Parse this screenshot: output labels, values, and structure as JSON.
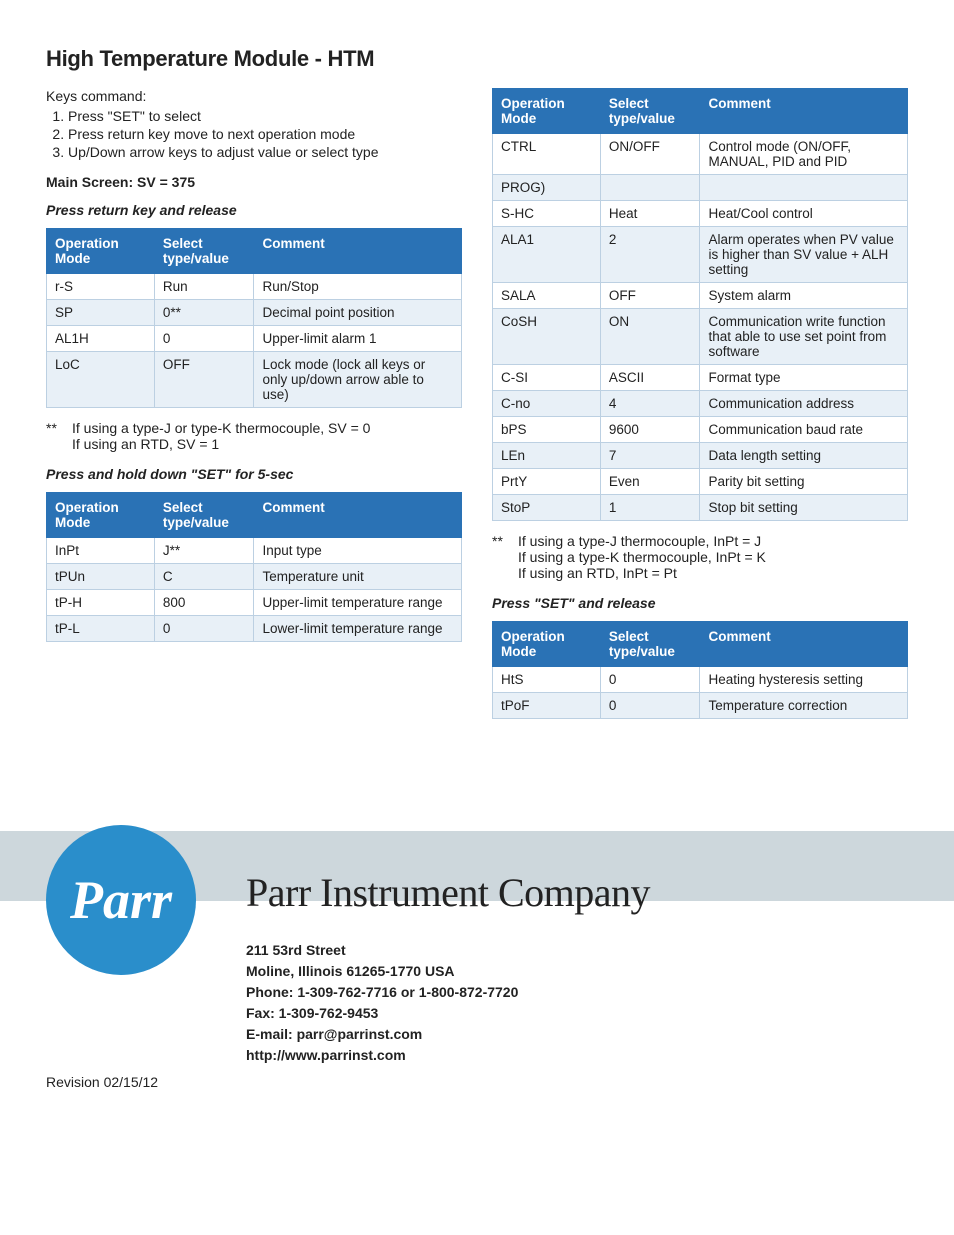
{
  "title": "High Temperature Module - HTM",
  "intro_label": "Keys command:",
  "keys": [
    "Press \"SET\" to select",
    "Press return key move to next operation mode",
    "Up/Down arrow keys to adjust value or select type"
  ],
  "main_screen": "Main Screen: SV = 375",
  "press_return": "Press return key and release",
  "headers": {
    "op": "Operation Mode",
    "sel": "Select type/value",
    "com": "Comment"
  },
  "table1": [
    {
      "op": "r-S",
      "sel": "Run",
      "com": "Run/Stop"
    },
    {
      "op": "SP",
      "sel": "0**",
      "com": "Decimal point position"
    },
    {
      "op": "AL1H",
      "sel": "0",
      "com": "Upper-limit alarm 1"
    },
    {
      "op": "LoC",
      "sel": "OFF",
      "com": "Lock mode (lock all keys or only up/down arrow able to use)"
    }
  ],
  "note1_top": "If using a type-J or type-K thermocouple, SV = 0",
  "note1_bot": "If using an RTD, SV = 1",
  "press_hold": "Press and hold down \"SET\" for 5-sec",
  "table2": [
    {
      "op": "InPt",
      "sel": "J**",
      "com": "Input type"
    },
    {
      "op": "tPUn",
      "sel": "C",
      "com": "Temperature unit"
    },
    {
      "op": "tP-H",
      "sel": "800",
      "com": "Upper-limit temperature range"
    },
    {
      "op": "tP-L",
      "sel": "0",
      "com": "Lower-limit temperature range"
    }
  ],
  "table3": [
    {
      "op": "CTRL",
      "sel": "ON/OFF",
      "com": "Control mode (ON/OFF, MANUAL, PID and PID"
    },
    {
      "op": "PROG)",
      "sel": "",
      "com": ""
    },
    {
      "op": "S-HC",
      "sel": "Heat",
      "com": "Heat/Cool control"
    },
    {
      "op": "ALA1",
      "sel": "2",
      "com": "Alarm operates when PV value is higher than SV value + ALH setting"
    },
    {
      "op": "SALA",
      "sel": "OFF",
      "com": "System alarm"
    },
    {
      "op": "CoSH",
      "sel": "ON",
      "com": "Communication write function that able to use set point from software"
    },
    {
      "op": "C-SI",
      "sel": "ASCII",
      "com": "Format type"
    },
    {
      "op": "C-no",
      "sel": "4",
      "com": "Communication address"
    },
    {
      "op": "bPS",
      "sel": "9600",
      "com": "Communication baud rate"
    },
    {
      "op": "LEn",
      "sel": "7",
      "com": "Data length setting"
    },
    {
      "op": "PrtY",
      "sel": "Even",
      "com": "Parity bit setting"
    },
    {
      "op": "StoP",
      "sel": "1",
      "com": "Stop bit setting"
    }
  ],
  "note2_a": "If using a type-J thermocouple, InPt = J",
  "note2_b": "If using a type-K thermocouple, InPt = K",
  "note2_c": "If using an RTD, InPt = Pt",
  "press_set": "Press \"SET\" and release",
  "table4": [
    {
      "op": "HtS",
      "sel": "0",
      "com": "Heating hysteresis setting"
    },
    {
      "op": "tPoF",
      "sel": "0",
      "com": "Temperature correction"
    }
  ],
  "company": "Parr Instrument Company",
  "logo": "Parr",
  "addr": {
    "l1": "211 53rd Street",
    "l2": "Moline, Illinois 61265-1770  USA",
    "l3": "Phone: 1-309-762-7716 or 1-800-872-7720",
    "l4": "Fax: 1-309-762-9453",
    "l5": "E-mail: parr@parrinst.com",
    "l6": "http://www.parrinst.com"
  },
  "revision": "Revision 02/15/12",
  "colors": {
    "header_bg": "#2a72b5",
    "row_even": "#e8f0f7",
    "band": "#cdd7dc",
    "logo": "#2a8ecb"
  }
}
